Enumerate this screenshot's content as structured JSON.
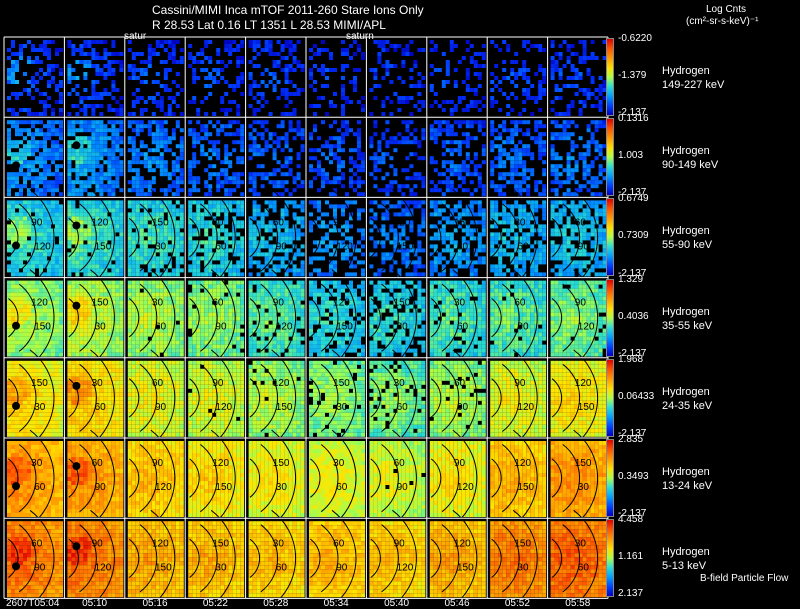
{
  "header": {
    "title_line1": "Cassini/MIMI Inca mTOF  2011-260   Stare   Ions Only",
    "title_line2": "R        28.53 Lat 0.16 LT 1351 L        28.53  MIMI/APL",
    "saturn_label_1": "satur",
    "saturn_label_2": "saturn"
  },
  "colorbar_title": {
    "line1": "Log Cnts",
    "line2": "(cm²-sr-s-keV)⁻¹"
  },
  "footer": {
    "bfield_label": "B-field Particle Flow"
  },
  "colors": {
    "background": "#000000",
    "grid_line": "#ffffff",
    "contour": "#000000"
  },
  "chart_data": {
    "type": "heatmap",
    "title": "Cassini/MIMI Inca mTOF 2011-260 Stare Ions Only",
    "x_tick_labels": [
      "2607T05:04",
      "05:10",
      "05:16",
      "05:22",
      "05:28",
      "05:34",
      "05:40",
      "05:46",
      "05:52",
      "05:58"
    ],
    "contour_labels": [
      "30",
      "60",
      "90",
      "120",
      "150"
    ],
    "rows": [
      {
        "species": "Hydrogen",
        "energy": "149-227 keV",
        "cb_max": "-0.6220",
        "cb_mid": "-1.379",
        "cb_min": "-2.137",
        "level": [
          0.18,
          0.17,
          0.16,
          0.15,
          0.15,
          0.14,
          0.13,
          0.14,
          0.15,
          0.15
        ],
        "density": [
          0.45,
          0.45,
          0.4,
          0.35,
          0.35,
          0.3,
          0.3,
          0.3,
          0.3,
          0.4
        ]
      },
      {
        "species": "Hydrogen",
        "energy": "90-149 keV",
        "cb_max": "0.1316",
        "cb_mid": "1.003",
        "cb_min": "-2.137",
        "level": [
          0.28,
          0.3,
          0.25,
          0.22,
          0.2,
          0.18,
          0.17,
          0.2,
          0.22,
          0.23
        ],
        "density": [
          0.75,
          0.8,
          0.6,
          0.5,
          0.45,
          0.4,
          0.35,
          0.45,
          0.55,
          0.55
        ]
      },
      {
        "species": "Hydrogen",
        "energy": "55-90 keV",
        "cb_max": "0.6749",
        "cb_mid": "0.7309",
        "cb_min": "-2.137",
        "level": [
          0.42,
          0.44,
          0.42,
          0.4,
          0.34,
          0.28,
          0.24,
          0.3,
          0.34,
          0.36
        ],
        "density": [
          0.95,
          0.95,
          0.85,
          0.75,
          0.65,
          0.5,
          0.45,
          0.6,
          0.7,
          0.75
        ]
      },
      {
        "species": "Hydrogen",
        "energy": "35-55 keV",
        "cb_max": "1.329",
        "cb_mid": "0.4036",
        "cb_min": "-2.137",
        "level": [
          0.55,
          0.58,
          0.55,
          0.52,
          0.46,
          0.4,
          0.4,
          0.44,
          0.46,
          0.5
        ],
        "density": [
          1,
          1,
          0.98,
          0.95,
          0.9,
          0.8,
          0.75,
          0.9,
          0.95,
          0.95
        ]
      },
      {
        "species": "Hydrogen",
        "energy": "24-35 keV",
        "cb_max": "1.968",
        "cb_mid": "0.06433",
        "cb_min": "-2.137",
        "level": [
          0.68,
          0.7,
          0.62,
          0.6,
          0.55,
          0.52,
          0.5,
          0.55,
          0.62,
          0.66
        ],
        "density": [
          1,
          1,
          1,
          0.98,
          0.95,
          0.9,
          0.88,
          0.95,
          1,
          1
        ]
      },
      {
        "species": "Hydrogen",
        "energy": "13-24 keV",
        "cb_max": "2.835",
        "cb_mid": "0.3493",
        "cb_min": "-2.137",
        "level": [
          0.8,
          0.8,
          0.72,
          0.68,
          0.64,
          0.62,
          0.6,
          0.65,
          0.74,
          0.8
        ],
        "density": [
          1,
          1,
          1,
          1,
          1,
          1,
          0.98,
          1,
          1,
          1
        ]
      },
      {
        "species": "Hydrogen",
        "energy": "5-13 keV",
        "cb_max": "4.458",
        "cb_mid": "1.161",
        "cb_min": "2.137",
        "level": [
          0.86,
          0.86,
          0.76,
          0.74,
          0.72,
          0.74,
          0.72,
          0.76,
          0.84,
          0.88
        ],
        "density": [
          1,
          1,
          1,
          1,
          1,
          1,
          1,
          1,
          1,
          1
        ]
      }
    ]
  }
}
